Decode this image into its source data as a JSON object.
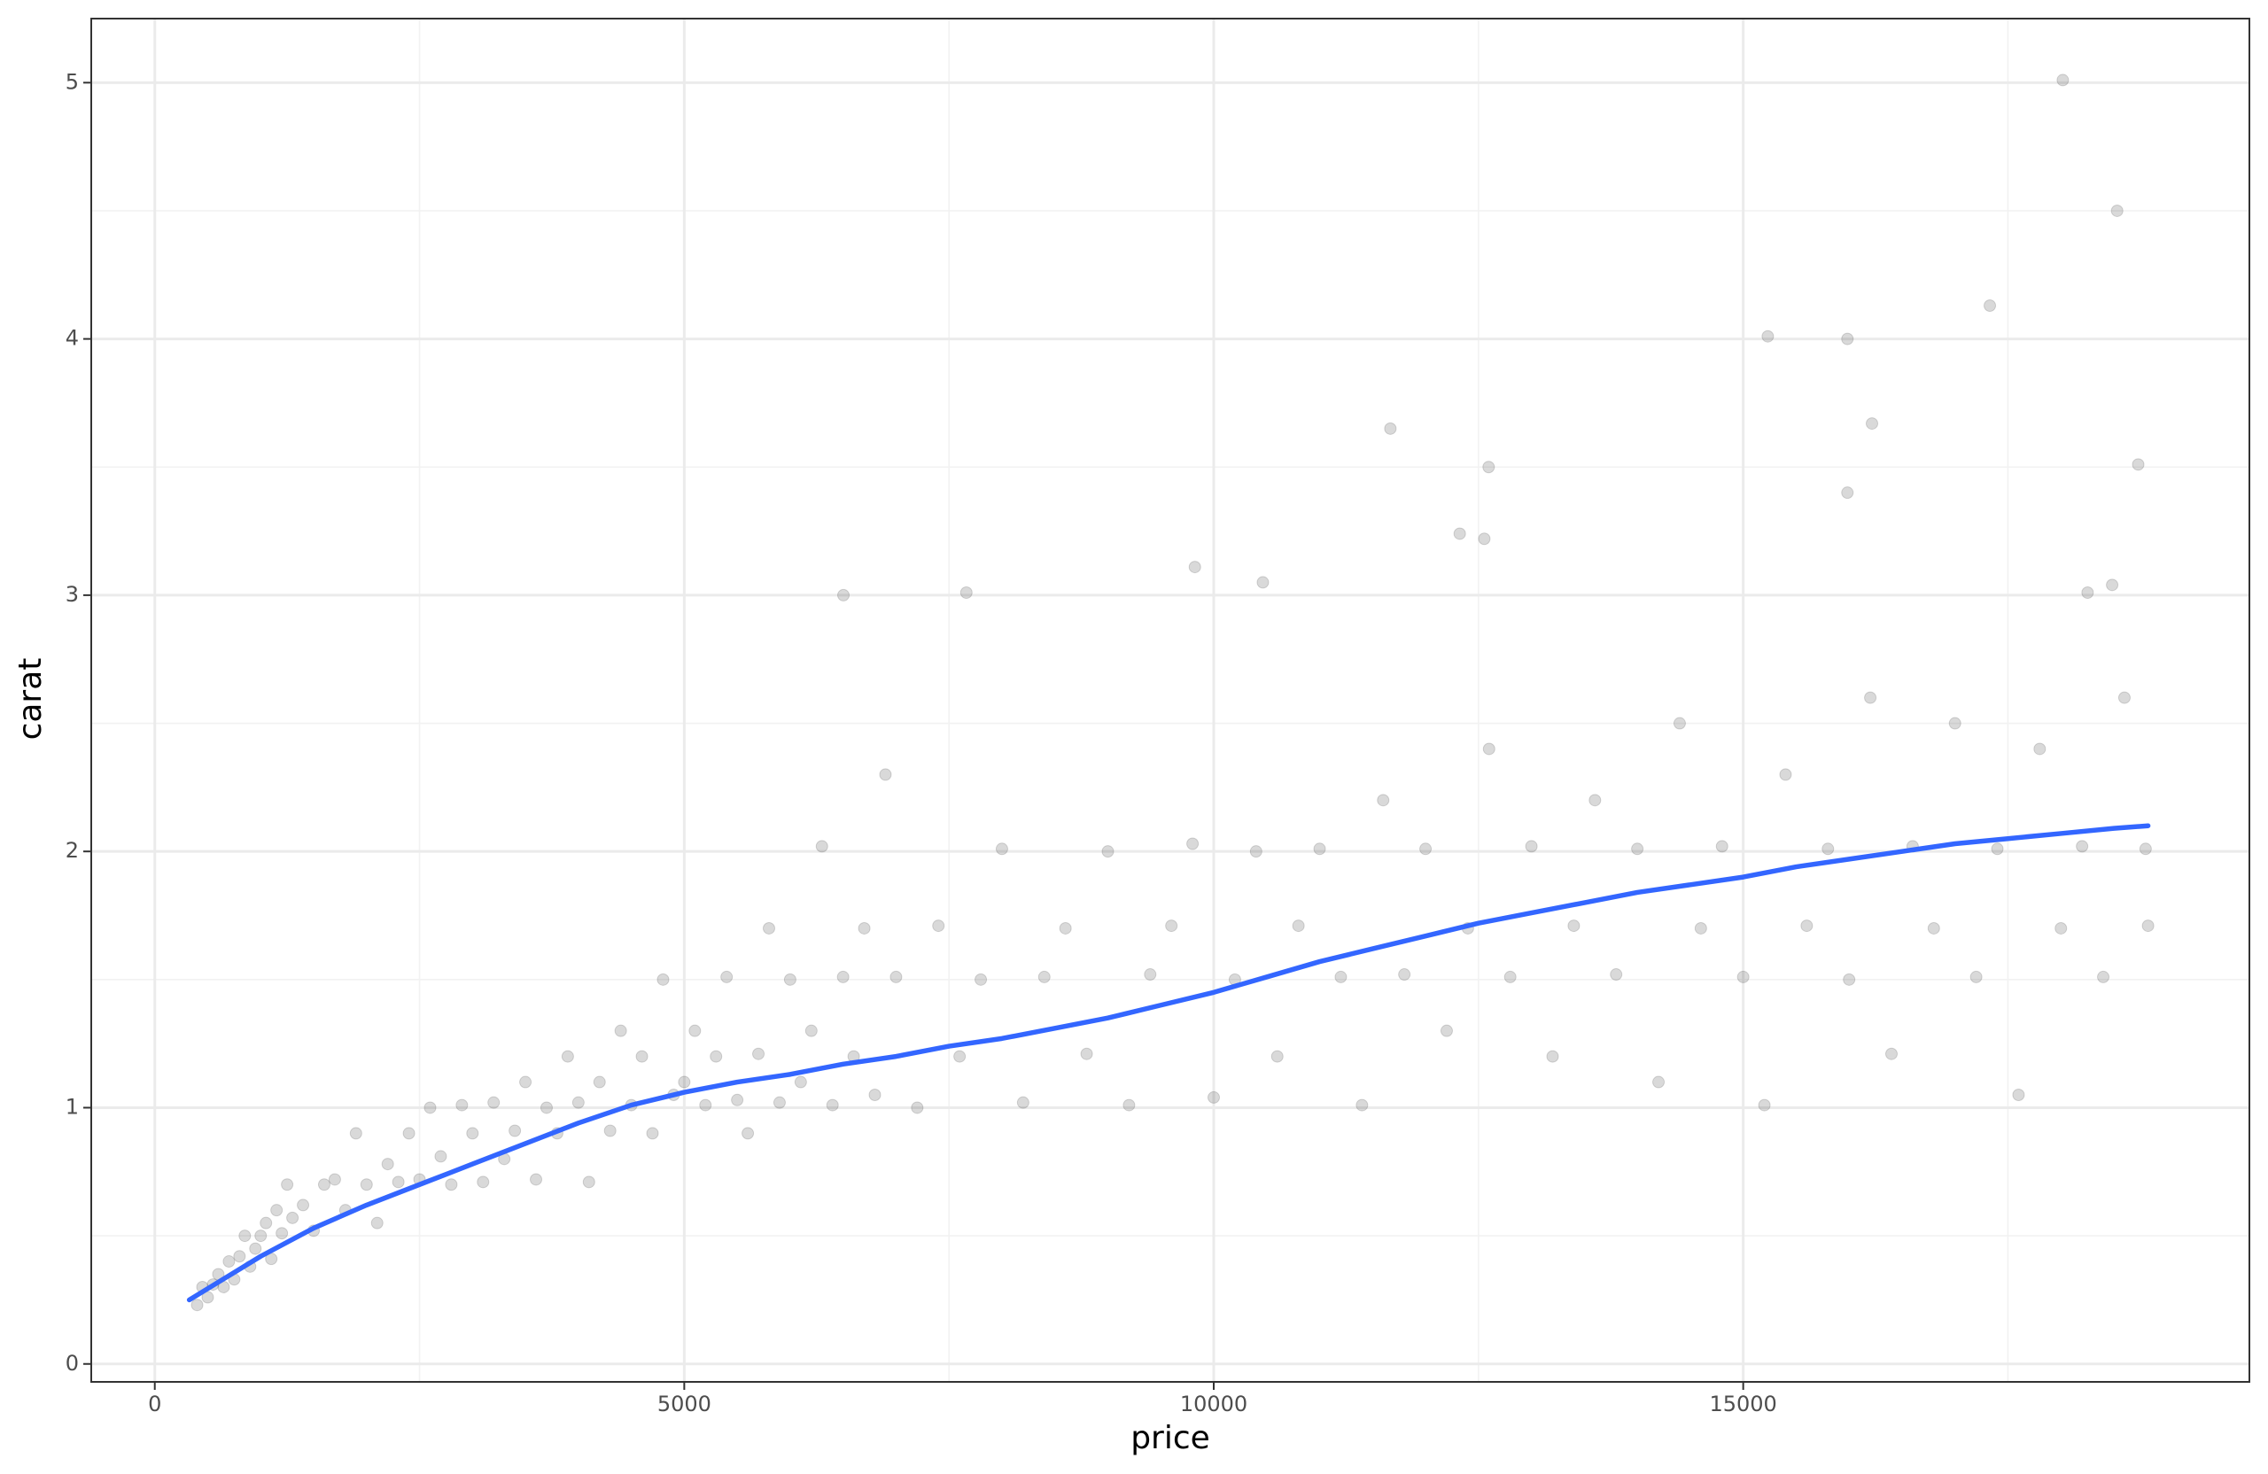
{
  "chart_data": {
    "type": "scatter",
    "x_label": "price",
    "y_label": "carat",
    "xlim": [
      -600,
      19780
    ],
    "ylim": [
      -0.07,
      5.25
    ],
    "xticks": [
      0,
      5000,
      10000,
      15000
    ],
    "yticks": [
      0,
      1,
      2,
      3,
      4,
      5
    ],
    "x_minor_grid": [
      2500,
      7500,
      12500,
      17500
    ],
    "y_minor_grid": [
      0.5,
      1.5,
      2.5,
      3.5,
      4.5
    ],
    "grid": true,
    "series": [
      {
        "type": "scatter",
        "color": "#000000",
        "opacity": 0.15,
        "x": [
          400,
          450,
          500,
          550,
          600,
          650,
          700,
          750,
          800,
          850,
          900,
          950,
          1000,
          1050,
          1100,
          1150,
          1200,
          1250,
          1300,
          1400,
          1500,
          1600,
          1700,
          1800,
          1900,
          2000,
          2100,
          2200,
          2300,
          2400,
          2500,
          2600,
          2700,
          2800,
          2900,
          3000,
          3100,
          3200,
          3300,
          3400,
          3500,
          3600,
          3700,
          3800,
          3900,
          4000,
          4100,
          4200,
          4300,
          4400,
          4500,
          4600,
          4700,
          4800,
          4900,
          5000,
          5100,
          5200,
          5300,
          5400,
          5500,
          5600,
          5700,
          5800,
          5900,
          6000,
          6100,
          6200,
          6300,
          6400,
          6500,
          6600,
          6700,
          6800,
          6900,
          7000,
          7200,
          7400,
          7600,
          7800,
          8000,
          8200,
          8400,
          8600,
          8800,
          9000,
          9200,
          9400,
          9600,
          9800,
          10000,
          10200,
          10400,
          10600,
          10800,
          11000,
          11200,
          11400,
          11600,
          11800,
          12000,
          12200,
          12400,
          12600,
          12800,
          13000,
          13200,
          13400,
          13600,
          13800,
          14000,
          14200,
          14400,
          14600,
          14800,
          15000,
          15200,
          15400,
          15600,
          15800,
          16000,
          16200,
          16400,
          16600,
          16800,
          17000,
          17200,
          17400,
          17600,
          17800,
          18000,
          18200,
          18400,
          18600,
          18800,
          18823,
          18018,
          18531,
          17329,
          15232,
          15984,
          16216,
          11668,
          12596,
          18730,
          15984,
          12323,
          12555,
          9822,
          10464,
          6503,
          7664,
          18484,
          18252
        ],
        "values": [
          0.23,
          0.3,
          0.26,
          0.31,
          0.35,
          0.3,
          0.4,
          0.33,
          0.42,
          0.5,
          0.38,
          0.45,
          0.5,
          0.55,
          0.41,
          0.6,
          0.51,
          0.7,
          0.57,
          0.62,
          0.52,
          0.7,
          0.72,
          0.6,
          0.9,
          0.7,
          0.55,
          0.78,
          0.71,
          0.9,
          0.72,
          1.0,
          0.81,
          0.7,
          1.01,
          0.9,
          0.71,
          1.02,
          0.8,
          0.91,
          1.1,
          0.72,
          1.0,
          0.9,
          1.2,
          1.02,
          0.71,
          1.1,
          0.91,
          1.3,
          1.01,
          1.2,
          0.9,
          1.5,
          1.05,
          1.1,
          1.3,
          1.01,
          1.2,
          1.51,
          1.03,
          0.9,
          1.21,
          1.7,
          1.02,
          1.5,
          1.1,
          1.3,
          2.02,
          1.01,
          1.51,
          1.2,
          1.7,
          1.05,
          2.3,
          1.51,
          1.0,
          1.71,
          1.2,
          1.5,
          2.01,
          1.02,
          1.51,
          1.7,
          1.21,
          2.0,
          1.01,
          1.52,
          1.71,
          2.03,
          1.04,
          1.5,
          2.0,
          1.2,
          1.71,
          2.01,
          1.51,
          1.01,
          2.2,
          1.52,
          2.01,
          1.3,
          1.7,
          2.4,
          1.51,
          2.02,
          1.2,
          1.71,
          2.2,
          1.52,
          2.01,
          1.1,
          2.5,
          1.7,
          2.02,
          1.51,
          1.01,
          2.3,
          1.71,
          2.01,
          1.5,
          2.6,
          1.21,
          2.02,
          1.7,
          2.5,
          1.51,
          2.01,
          1.05,
          2.4,
          1.7,
          2.02,
          1.51,
          2.6,
          2.01,
          1.71,
          5.01,
          4.5,
          4.13,
          4.01,
          4.0,
          3.67,
          3.65,
          3.5,
          3.51,
          3.4,
          3.24,
          3.22,
          3.11,
          3.05,
          3.0,
          3.01,
          3.04,
          3.01
        ]
      },
      {
        "type": "line",
        "color": "#3366ff",
        "x": [
          326,
          1000,
          1500,
          2000,
          2500,
          3000,
          3500,
          4000,
          4500,
          5000,
          5500,
          6000,
          6500,
          7000,
          7500,
          8000,
          8500,
          9000,
          9500,
          10000,
          10500,
          11000,
          11500,
          12000,
          12500,
          13000,
          13500,
          14000,
          14500,
          15000,
          15500,
          16000,
          16500,
          17000,
          17500,
          18000,
          18500,
          18823
        ],
        "values": [
          0.25,
          0.42,
          0.53,
          0.62,
          0.7,
          0.78,
          0.86,
          0.94,
          1.01,
          1.06,
          1.1,
          1.13,
          1.17,
          1.2,
          1.24,
          1.27,
          1.31,
          1.35,
          1.4,
          1.45,
          1.51,
          1.57,
          1.62,
          1.67,
          1.72,
          1.76,
          1.8,
          1.84,
          1.87,
          1.9,
          1.94,
          1.97,
          2.0,
          2.03,
          2.05,
          2.07,
          2.09,
          2.1
        ]
      }
    ]
  }
}
